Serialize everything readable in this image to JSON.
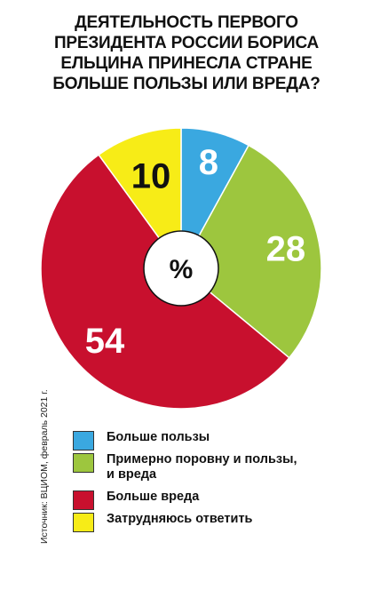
{
  "title_lines": [
    "ДЕЯТЕЛЬНОСТЬ ПЕРВОГО",
    "ПРЕЗИДЕНТА РОССИИ БОРИСА",
    "ЕЛЬЦИНА ПРИНЕСЛА СТРАНЕ",
    "БОЛЬШЕ ПОЛЬЗЫ ИЛИ ВРЕДА?"
  ],
  "source": "Источник: ВЦИОМ, февраль 2021 г.",
  "chart_data": {
    "type": "pie",
    "center_label": "%",
    "slices": [
      {
        "label": "Больше пользы",
        "value": 8,
        "color": "#3aa8e0"
      },
      {
        "label": "Примерно поровну и пользы, и вреда",
        "value": 28,
        "color": "#9dc63e"
      },
      {
        "label": "Больше вреда",
        "value": 54,
        "color": "#c8102e"
      },
      {
        "label": "Затрудняюсь ответить",
        "value": 10,
        "color": "#f7ec17"
      }
    ]
  },
  "legend": [
    {
      "lines": [
        "Больше пользы"
      ],
      "color": "#3aa8e0"
    },
    {
      "lines": [
        "Примерно поровну и пользы,",
        "и вреда"
      ],
      "color": "#9dc63e"
    },
    {
      "lines": [
        "Больше вреда"
      ],
      "color": "#c8102e"
    },
    {
      "lines": [
        "Затрудняюсь ответить"
      ],
      "color": "#f7ec17"
    }
  ]
}
